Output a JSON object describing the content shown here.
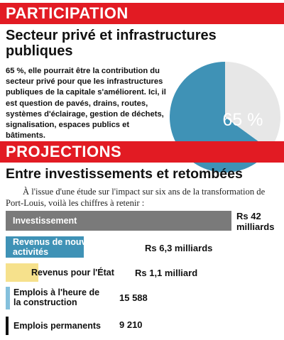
{
  "participation": {
    "band": "PARTICIPATION",
    "heading": "Secteur privé et infrastructures publiques",
    "body": "65 %, elle pourrait être la contribution du secteur privé pour que les infrastructures publiques de la capitale s'améliorent. Ici, il est question de pavés, drains, routes, systèmes d'éclairage, gestion de déchets, signalisation, espaces publics et bâtiments."
  },
  "projections": {
    "band": "PROJECTIONS",
    "heading": "Entre investissements et retombées",
    "intro": "À l'issue d'une étude sur l'impact sur six ans de la transformation de Port-Louis, voilà les chiffres à retenir :"
  },
  "colors": {
    "red": "#e21b23",
    "pie_main": "#3f92b6",
    "pie_rest": "#e7e7e7",
    "investissement": "#7a7a7a",
    "revenus_activites": "#3f92b6",
    "revenus_etat": "#f6e18c",
    "emplois_construction": "#84c0dc",
    "emplois_permanents": "#111111"
  },
  "chart_data": [
    {
      "type": "pie",
      "values": [
        65,
        35
      ],
      "slice_labels": [
        "65 %",
        ""
      ],
      "colors": [
        "#3f92b6",
        "#e7e7e7"
      ]
    },
    {
      "type": "bar",
      "orientation": "horizontal",
      "categories": [
        "Investissement",
        "Revenus de nouvelles activités",
        "Revenus pour l'État",
        "Emplois à l'heure de la construction",
        "Emplois permanents"
      ],
      "values": [
        42,
        6.3,
        1.1,
        15588,
        9210
      ],
      "value_labels": [
        "Rs 42 milliards",
        "Rs 6,3 milliards",
        "Rs 1,1 milliard",
        "15 588",
        "9 210"
      ],
      "units": [
        "Rs milliards",
        "Rs milliards",
        "Rs milliards",
        "emplois",
        "emplois"
      ],
      "bar_colors": [
        "#7a7a7a",
        "#3f92b6",
        "#f6e18c",
        "#84c0dc",
        "#111111"
      ],
      "value_lines": [
        [
          "Rs 42",
          "milliards"
        ],
        [
          "Rs 6,3 milliards"
        ],
        [
          "Rs 1,1 milliard"
        ],
        [
          "15 588"
        ],
        [
          "9 210"
        ]
      ],
      "label_lines": [
        [
          "Investissement"
        ],
        [
          "Revenus de nouvelles",
          "activités"
        ],
        [
          "Revenus pour l'État"
        ],
        [
          "Emplois à l'heure de",
          "la construction"
        ],
        [
          "Emplois permanents"
        ]
      ]
    }
  ]
}
